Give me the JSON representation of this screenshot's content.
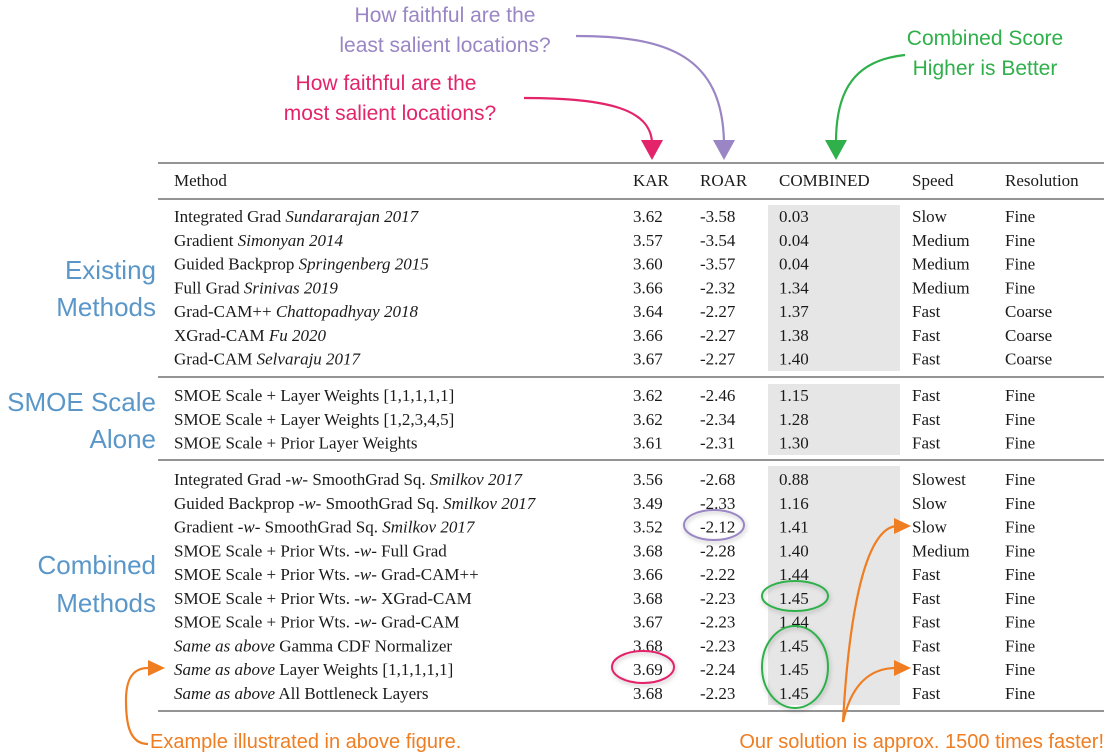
{
  "colors": {
    "pink": "#e3246b",
    "purple": "#9a86c4",
    "green": "#2fb04b",
    "orange": "#ef7d22",
    "blue": "#5a97c8",
    "shade": "#e6e6e6",
    "rule": "#555555"
  },
  "annotations": {
    "roar_question": [
      "How faithful are the",
      "least salient locations?"
    ],
    "kar_question": [
      "How faithful are the",
      "most salient locations?"
    ],
    "combined_note": [
      "Combined Score",
      "Higher is Better"
    ],
    "example_note": "Example illustrated in above figure.",
    "speed_note": "Our solution is approx. 1500 times faster!"
  },
  "group_labels": [
    [
      "Existing",
      "Methods"
    ],
    [
      "SMOE Scale",
      "Alone"
    ],
    [
      "Combined",
      "Methods"
    ]
  ],
  "table": {
    "headers": [
      "Method",
      "KAR",
      "ROAR",
      "COMBINED",
      "Speed",
      "Resolution"
    ],
    "groups": [
      [
        {
          "method": [
            "Integrated Grad ",
            "Sundararajan 2017"
          ],
          "kar": "3.62",
          "roar": "-3.58",
          "combined": "0.03",
          "speed": "Slow",
          "resolution": "Fine"
        },
        {
          "method": [
            "Gradient ",
            "Simonyan 2014"
          ],
          "kar": "3.57",
          "roar": "-3.54",
          "combined": "0.04",
          "speed": "Medium",
          "resolution": "Fine"
        },
        {
          "method": [
            "Guided Backprop ",
            "Springenberg 2015"
          ],
          "kar": "3.60",
          "roar": "-3.57",
          "combined": "0.04",
          "speed": "Medium",
          "resolution": "Fine"
        },
        {
          "method": [
            "Full Grad ",
            "Srinivas 2019"
          ],
          "kar": "3.66",
          "roar": "-2.32",
          "combined": "1.34",
          "speed": "Medium",
          "resolution": "Fine"
        },
        {
          "method": [
            "Grad-CAM++ ",
            "Chattopadhyay 2018"
          ],
          "kar": "3.64",
          "roar": "-2.27",
          "combined": "1.37",
          "speed": "Fast",
          "resolution": "Coarse"
        },
        {
          "method": [
            "XGrad-CAM ",
            "Fu 2020"
          ],
          "kar": "3.66",
          "roar": "-2.27",
          "combined": "1.38",
          "speed": "Fast",
          "resolution": "Coarse"
        },
        {
          "method": [
            "Grad-CAM ",
            "Selvaraju 2017"
          ],
          "kar": "3.67",
          "roar": "-2.27",
          "combined": "1.40",
          "speed": "Fast",
          "resolution": "Coarse"
        }
      ],
      [
        {
          "method": [
            "SMOE Scale + Layer Weights [1,1,1,1,1]"
          ],
          "kar": "3.62",
          "roar": "-2.46",
          "combined": "1.15",
          "speed": "Fast",
          "resolution": "Fine"
        },
        {
          "method": [
            "SMOE Scale + Layer Weights [1,2,3,4,5]"
          ],
          "kar": "3.62",
          "roar": "-2.34",
          "combined": "1.28",
          "speed": "Fast",
          "resolution": "Fine"
        },
        {
          "method": [
            "SMOE Scale + Prior Layer Weights"
          ],
          "kar": "3.61",
          "roar": "-2.31",
          "combined": "1.30",
          "speed": "Fast",
          "resolution": "Fine"
        }
      ],
      [
        {
          "method": [
            "Integrated Grad ",
            "-w-",
            " SmoothGrad Sq. ",
            "Smilkov 2017"
          ],
          "kar": "3.56",
          "roar": "-2.68",
          "combined": "0.88",
          "speed": "Slowest",
          "resolution": "Fine"
        },
        {
          "method": [
            "Guided Backprop ",
            "-w-",
            " SmoothGrad Sq. ",
            "Smilkov 2017"
          ],
          "kar": "3.49",
          "roar": "-2.33",
          "combined": "1.16",
          "speed": "Slow",
          "resolution": "Fine"
        },
        {
          "method": [
            "Gradient ",
            "-w-",
            " SmoothGrad Sq. ",
            "Smilkov 2017"
          ],
          "kar": "3.52",
          "roar": "-2.12",
          "combined": "1.41",
          "speed": "Slow",
          "resolution": "Fine"
        },
        {
          "method": [
            "SMOE Scale + Prior Wts. ",
            "-w-",
            " Full Grad"
          ],
          "kar": "3.68",
          "roar": "-2.28",
          "combined": "1.40",
          "speed": "Medium",
          "resolution": "Fine"
        },
        {
          "method": [
            "SMOE Scale + Prior Wts. ",
            "-w-",
            " Grad-CAM++"
          ],
          "kar": "3.66",
          "roar": "-2.22",
          "combined": "1.44",
          "speed": "Fast",
          "resolution": "Fine"
        },
        {
          "method": [
            "SMOE Scale + Prior Wts. ",
            "-w-",
            " XGrad-CAM"
          ],
          "kar": "3.68",
          "roar": "-2.23",
          "combined": "1.45",
          "speed": "Fast",
          "resolution": "Fine"
        },
        {
          "method": [
            "SMOE Scale + Prior Wts. ",
            "-w-",
            " Grad-CAM"
          ],
          "kar": "3.67",
          "roar": "-2.23",
          "combined": "1.44",
          "speed": "Fast",
          "resolution": "Fine"
        },
        {
          "method": [
            "",
            "Same as above",
            " Gamma CDF Normalizer"
          ],
          "kar": "3.68",
          "roar": "-2.23",
          "combined": "1.45",
          "speed": "Fast",
          "resolution": "Fine"
        },
        {
          "method": [
            "",
            "Same as above",
            " Layer Weights [1,1,1,1,1]"
          ],
          "kar": "3.69",
          "roar": "-2.24",
          "combined": "1.45",
          "speed": "Fast",
          "resolution": "Fine"
        },
        {
          "method": [
            "",
            "Same as above",
            " All Bottleneck Layers"
          ],
          "kar": "3.68",
          "roar": "-2.23",
          "combined": "1.45",
          "speed": "Fast",
          "resolution": "Fine"
        }
      ]
    ]
  }
}
